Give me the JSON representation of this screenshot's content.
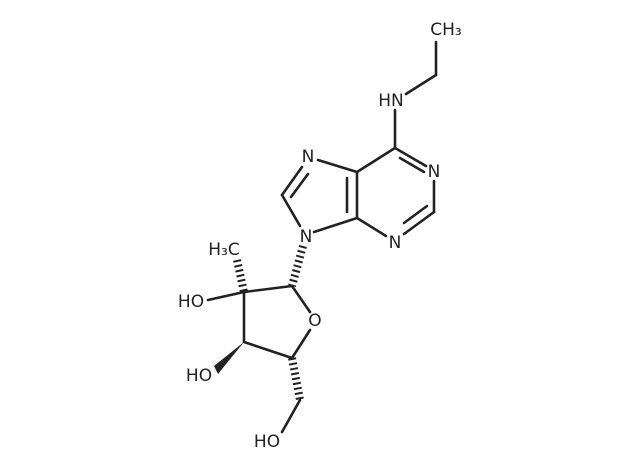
{
  "atoms": [
    {
      "label": "CH₃"
    },
    {
      "label": "HN"
    },
    {
      "label": "N"
    },
    {
      "label": "N"
    },
    {
      "label": "N"
    },
    {
      "label": "N"
    },
    {
      "label": "H₃C"
    },
    {
      "label": "HO"
    },
    {
      "label": "O"
    },
    {
      "label": "HO"
    },
    {
      "label": "HO"
    }
  ]
}
